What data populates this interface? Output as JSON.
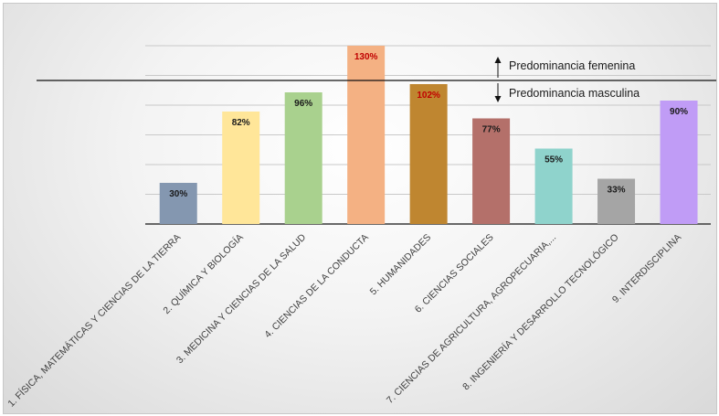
{
  "chart_data": {
    "type": "bar",
    "categories": [
      "1. FÍSICA, MATEMÁTICAS Y CIENCIAS DE LA TIERRA",
      "2. QUÍMICA Y BIOLOGÍA",
      "3. MEDICINA Y CIENCIAS DE LA SALUD",
      "4. CIENCIAS DE LA CONDUCTA",
      "5. HUMANIDADES",
      "6. CIENCIAS SOCIALES",
      "7. CIENCIAS DE AGRICULTURA, AGROPECUARIA,...",
      "8. INGENIERÍA Y DESARROLLO TECNOLÓGICO",
      "9. INTERDISCIPLINA"
    ],
    "values": [
      30,
      82,
      96,
      130,
      102,
      77,
      55,
      33,
      90
    ],
    "data_labels": [
      "30%",
      "82%",
      "96%",
      "130%",
      "102%",
      "77%",
      "55%",
      "33%",
      "90%"
    ],
    "colors": [
      "#8497b0",
      "#ffe699",
      "#a9d18e",
      "#f4b183",
      "#bf8630",
      "#b4706a",
      "#8fd3cc",
      "#a5a5a5",
      "#c09cf6"
    ],
    "label_colors": [
      "#1a1a1a",
      "#1a1a1a",
      "#1a1a1a",
      "#c00000",
      "#c00000",
      "#1a1a1a",
      "#1a1a1a",
      "#1a1a1a",
      "#1a1a1a"
    ],
    "ylim": [
      0,
      140
    ],
    "grid": true,
    "reference_line": 100,
    "annotations": {
      "above": "Predominancia femenina",
      "below": "Predominancia masculina"
    }
  }
}
